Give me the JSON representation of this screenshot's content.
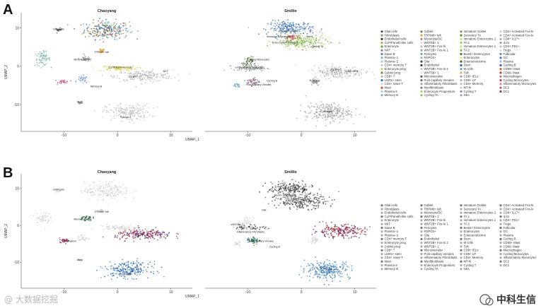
{
  "figure": {
    "panels": [
      {
        "letter": "A"
      },
      {
        "letter": "B"
      }
    ],
    "watermark_left": "@ 大数据挖掘",
    "watermark_right": "中科生信"
  },
  "chart_data": [
    {
      "type": "scatter",
      "panel": "A",
      "color_mode": "colored",
      "title_left": "Chaoyang",
      "title_right": "Smillie",
      "xlabel": "UMAP_1",
      "ylabel": "UMAP_2",
      "xticks_left": [
        "-10",
        "0",
        "10"
      ],
      "xticks_right": [
        "-10",
        "0",
        "10"
      ],
      "yticks": [
        "10",
        "0",
        "-10"
      ],
      "cluster_labels_left": [
        {
          "text": "Glial cells",
          "x": -11,
          "y": 9.5
        },
        {
          "text": "TPRM8+ tuft",
          "x": -3,
          "y": 3.5
        },
        {
          "text": "Microvessel/DC",
          "x": -6.5,
          "y": 1.5
        },
        {
          "text": "CLP/Paneth-like cells",
          "x": 0.5,
          "y": -0.5
        },
        {
          "text": "NKT",
          "x": 9,
          "y": -1.5
        },
        {
          "text": "Memory B",
          "x": -4,
          "y": -5.5
        },
        {
          "text": "Mast",
          "x": -7,
          "y": -9.5
        },
        {
          "text": "CD8+ T",
          "x": 3,
          "y": -3
        },
        {
          "text": "Plasma-3",
          "x": 1.5,
          "y": -13.5
        }
      ],
      "cluster_labels_right": [
        {
          "text": "Immature Goblet",
          "x": -2.5,
          "y": 9
        },
        {
          "text": "Immature Enterocytes 2",
          "x": -4,
          "y": 7.5
        },
        {
          "text": "Enterocyte Progenitors",
          "x": -3,
          "y": 6
        },
        {
          "text": "Stem",
          "x": 1.5,
          "y": 7.5
        },
        {
          "text": "Cycling TA",
          "x": 3,
          "y": 5
        },
        {
          "text": "Cycling Monocytes",
          "x": -8,
          "y": 1.5
        },
        {
          "text": "Inflammatory Monocytes",
          "x": -9.5,
          "y": -0.5
        },
        {
          "text": "Follicular",
          "x": 2.5,
          "y": -4
        },
        {
          "text": "Cycling T",
          "x": 6.5,
          "y": -1
        },
        {
          "text": "CD8+ IELs",
          "x": 9.5,
          "y": -1.5
        },
        {
          "text": "Cycling B",
          "x": -5.5,
          "y": -4
        },
        {
          "text": "Post-capillary Venules",
          "x": -8,
          "y": -5
        },
        {
          "text": "Plasma",
          "x": 5,
          "y": -12
        }
      ],
      "legend": [
        {
          "label": "Glial cells",
          "color": "#4e4e4e"
        },
        {
          "label": "Fibroblasts",
          "color": "#8a8a8a"
        },
        {
          "label": "Endothelial cells",
          "color": "#2f2f2f"
        },
        {
          "label": "CLP/Paneth-like cells",
          "color": "#c6a33a"
        },
        {
          "label": "Enterocyte",
          "color": "#7a9a3a"
        },
        {
          "label": "NKT",
          "color": "#9a7ab5"
        },
        {
          "label": "Naive B",
          "color": "#5a7ec0"
        },
        {
          "label": "Plasma--1",
          "color": "#7fa9d8"
        },
        {
          "label": "Plasma--2",
          "color": "#9ccce6"
        },
        {
          "label": "CD4+ memory T",
          "color": "#c9c9c9"
        },
        {
          "label": "Enterocyte prog",
          "color": "#b9d86c"
        },
        {
          "label": "Goblet prog",
          "color": "#6a8a3a"
        },
        {
          "label": "CD8+ T",
          "color": "#b3b3b3"
        },
        {
          "label": "LGR5+ stem",
          "color": "#3a6fb0"
        },
        {
          "label": "CD4+ naive T",
          "color": "#d6d6d6"
        },
        {
          "label": "Mast",
          "color": "#c7502e"
        },
        {
          "label": "Plasma-3",
          "color": "#a9c4e4"
        },
        {
          "label": "Memory B",
          "color": "#9aa0ae"
        },
        {
          "label": "Goblet",
          "color": "#5e8d3d"
        },
        {
          "label": "TRPM8+ tuft",
          "color": "#e0a53a"
        },
        {
          "label": "Monocyte/DC",
          "color": "#d06f8f"
        },
        {
          "label": "WNT5B+ 2",
          "color": "#d9d9d9"
        },
        {
          "label": "WNT2B+ Fos-hi",
          "color": "#bdbdbd"
        },
        {
          "label": "WNT2B+ Fos-lo 1",
          "color": "#a3a3a3"
        },
        {
          "label": "Pericytes",
          "color": "#6fa6a0"
        },
        {
          "label": "RSPO3+",
          "color": "#8cbfb2"
        },
        {
          "label": "Glia",
          "color": "#4b4b4b"
        },
        {
          "label": "Endothelial",
          "color": "#3b3b3b"
        },
        {
          "label": "WNT2B+ Fos-lo 2",
          "color": "#c8c8c8"
        },
        {
          "label": "WNT5B+ 1",
          "color": "#e2e2e2"
        },
        {
          "label": "Microvascular",
          "color": "#5b5b5b"
        },
        {
          "label": "Post-capillary Venules",
          "color": "#6b6b6b"
        },
        {
          "label": "Inflammatory Fibroblasts",
          "color": "#a8a8a8"
        },
        {
          "label": "Myofibroblasts",
          "color": "#7e7e7e"
        },
        {
          "label": "Enterocyte Progenitors",
          "color": "#a6d06a"
        },
        {
          "label": "Cycling TA",
          "color": "#8bbf54"
        },
        {
          "label": "Immature Goblet",
          "color": "#6e9f46"
        },
        {
          "label": "Secretory TA",
          "color": "#5a8a36"
        },
        {
          "label": "Immature Enterocytes 2",
          "color": "#b7dc7a"
        },
        {
          "label": "TA 1",
          "color": "#9fcf5f"
        },
        {
          "label": "Immature Enterocytes 1",
          "color": "#c6e48a"
        },
        {
          "label": "TA 2",
          "color": "#82b84c"
        },
        {
          "label": "Best4+ Enterocytes",
          "color": "#4f7d2c"
        },
        {
          "label": "Enterocytes",
          "color": "#d4ea9c"
        },
        {
          "label": "Enteroendocrine",
          "color": "#3f6a22"
        },
        {
          "label": "Stem",
          "color": "#2d5fa8"
        },
        {
          "label": "M cells",
          "color": "#5aa0b0"
        },
        {
          "label": "Tuft",
          "color": "#e2b04a"
        },
        {
          "label": "CD8+ IELs",
          "color": "#9a9a9a"
        },
        {
          "label": "CD8+ LP",
          "color": "#b0b0b0"
        },
        {
          "label": "CD4+ Memory",
          "color": "#c0c0c0"
        },
        {
          "label": "MT-hi",
          "color": "#cfcfcf"
        },
        {
          "label": "Cycling T",
          "color": "#8f8f8f"
        },
        {
          "label": "NKs",
          "color": "#a99ac8"
        },
        {
          "label": "CD4+ Activated Fos-hi",
          "color": "#d0d0d0"
        },
        {
          "label": "CD4+ Activated Fos-lo",
          "color": "#bcbcbc"
        },
        {
          "label": "CD8+ IL17+",
          "color": "#acacac"
        },
        {
          "label": "ILCs",
          "color": "#9c9c9c"
        },
        {
          "label": "CD4+ PD1+",
          "color": "#c4c4c4"
        },
        {
          "label": "Tregs",
          "color": "#d8d8d8"
        },
        {
          "label": "Follicular",
          "color": "#6b86c0"
        },
        {
          "label": "GC",
          "color": "#4f6fb0"
        },
        {
          "label": "Plasma",
          "color": "#8fbfe0"
        },
        {
          "label": "Cycling B",
          "color": "#3f5f9f"
        },
        {
          "label": "CD69+ Mast",
          "color": "#d2603a"
        },
        {
          "label": "CD69- Mast",
          "color": "#b8482a"
        },
        {
          "label": "Macrophages",
          "color": "#c76a90"
        },
        {
          "label": "Cycling Monocytes",
          "color": "#a94a78"
        },
        {
          "label": "Inflammatory Monocytes",
          "color": "#e08aa8"
        },
        {
          "label": "DC2",
          "color": "#b45a80"
        },
        {
          "label": "DC1",
          "color": "#8e3c64"
        }
      ]
    },
    {
      "type": "scatter",
      "panel": "B",
      "color_mode": "highlighted",
      "title_left": "Chaoyang",
      "title_right": "Smillie",
      "xlabel": "UMAP_1",
      "ylabel": "UMAP_2",
      "xticks_left": [
        "-10",
        "0",
        "10"
      ],
      "xticks_right": [
        "-10",
        "0",
        "10"
      ],
      "yticks": [
        "10",
        "0",
        "-10"
      ],
      "cluster_labels_left": [
        {
          "text": "Glial cells",
          "x": -11,
          "y": 9.5
        },
        {
          "text": "TPRM8+ tuft",
          "x": -3,
          "y": 3.5
        },
        {
          "text": "Microvessel/DC",
          "x": -6.5,
          "y": 1.5
        },
        {
          "text": "Endothelium",
          "x": -9,
          "y": -4.5
        },
        {
          "text": "Mast",
          "x": -7,
          "y": -9.5
        },
        {
          "text": "CD8+ T",
          "x": 4,
          "y": -3
        },
        {
          "text": "Plasma-3",
          "x": 1.5,
          "y": -13.5
        }
      ],
      "cluster_labels_right": [
        {
          "text": "Best4+ Enterocytes",
          "x": -3,
          "y": 8
        },
        {
          "text": "Glia",
          "x": -7,
          "y": 4
        },
        {
          "text": "WNT5B+ 2",
          "x": -12,
          "y": 0
        },
        {
          "text": "Inflammatory Fibroblasts",
          "x": -9.5,
          "y": -2
        },
        {
          "text": "Post-capillary Venules",
          "x": -7.5,
          "y": -4.5
        },
        {
          "text": "Cycling B",
          "x": -5,
          "y": -6
        },
        {
          "text": "Plasma",
          "x": 5,
          "y": -12
        }
      ]
    }
  ]
}
